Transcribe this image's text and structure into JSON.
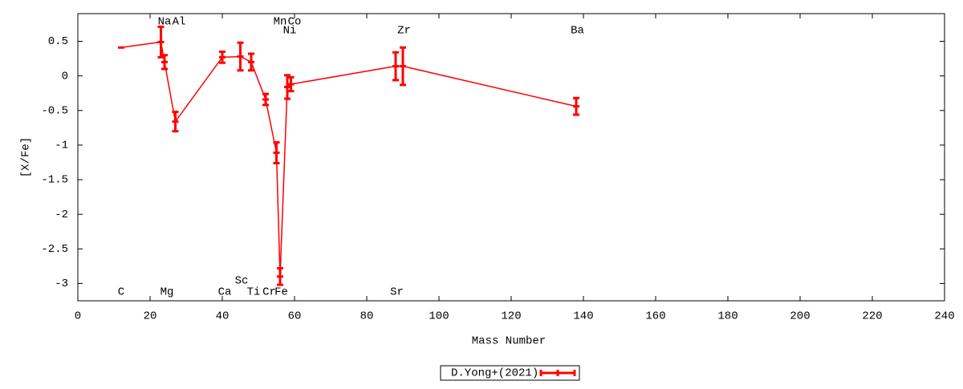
{
  "chart_data": {
    "type": "errorbar_line",
    "x_label": "Mass Number",
    "y_label": "[X/Fe]",
    "xlim": [
      0,
      240
    ],
    "xticks": [
      0,
      20,
      40,
      60,
      80,
      100,
      120,
      140,
      160,
      180,
      200,
      220,
      240
    ],
    "ylim": [
      -3.25,
      0.9
    ],
    "yticks": [
      0.5,
      0,
      -0.5,
      -1,
      -1.5,
      -2,
      -2.5,
      -3
    ],
    "point_labels": [
      "C",
      "Na",
      "Mg",
      "Al",
      "Ca",
      "Sc",
      "Ti",
      "Cr",
      "Mn",
      "Fe",
      "Ni",
      "Co",
      "Sr",
      "Zr",
      "Ba"
    ],
    "series": [
      {
        "name": "D.Yong+(2021)",
        "color": "#ff0000",
        "x": [
          12,
          23,
          24,
          27,
          40,
          45,
          48,
          52,
          55,
          56,
          58,
          59,
          88,
          90,
          138
        ],
        "values": [
          0.41,
          0.49,
          0.2,
          -0.66,
          0.27,
          0.28,
          0.2,
          -0.34,
          -1.11,
          -2.9,
          -0.16,
          -0.12,
          0.14,
          0.14,
          -0.44
        ],
        "errors": [
          null,
          0.22,
          0.1,
          0.14,
          0.08,
          0.2,
          0.12,
          0.08,
          0.15,
          0.12,
          0.17,
          0.1,
          0.2,
          0.27,
          0.12
        ]
      }
    ],
    "legend": "bottom-center"
  }
}
